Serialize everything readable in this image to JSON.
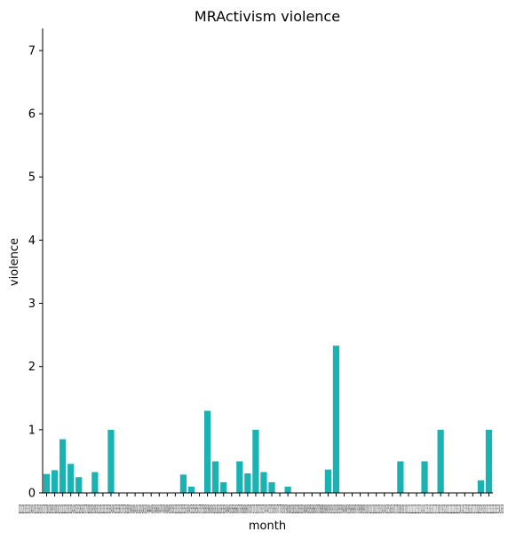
{
  "chart_data": {
    "type": "bar",
    "title": "MRActivism violence",
    "xlabel": "month",
    "ylabel": "violence",
    "ylim": [
      0,
      7.35
    ],
    "yticks": [
      0,
      1,
      2,
      3,
      4,
      5,
      6,
      7
    ],
    "grid": false,
    "bar_color": "#1ab3b3",
    "x_tick_labels_text": "201201201301301301401401501501601601701701801801901902002002102102202202302302402402502502602602702702802802903003003103103203203303303403403503503603703703803803904004004104104204204304304404404504504604604704704804804905005005105105205205305305405405505505605605705705805805906006006106106206206306306406406506506606606706706806806907007007107107207207307307407407507507607607707707807807908008008108108208208308308408408508508608608708708808808909009009109109209209309309409409509509609609709709809809910010010110110210210310310410410510510610610710710810810911011011111111211211311311411411511511611611711711811811912012012112112212212312312412412512512612612712712812812913013013113113213213313313413435",
    "categories": [
      "1",
      "2",
      "3",
      "4",
      "5",
      "6",
      "7",
      "8",
      "9",
      "10",
      "11",
      "12",
      "13",
      "14",
      "15",
      "16",
      "17",
      "18",
      "19",
      "20",
      "21",
      "22",
      "23",
      "24",
      "25",
      "26",
      "27",
      "28",
      "29",
      "30",
      "31",
      "32",
      "33",
      "34",
      "35",
      "36",
      "37",
      "38",
      "39",
      "40",
      "41",
      "42",
      "43",
      "44",
      "45",
      "46",
      "47",
      "48",
      "49",
      "50",
      "51",
      "52",
      "53",
      "54",
      "55",
      "56"
    ],
    "values": [
      0.3,
      0.36,
      0.85,
      0.46,
      0.25,
      0,
      0.33,
      0,
      1.0,
      0,
      0,
      0,
      0,
      0,
      0,
      0,
      0,
      0.29,
      0.1,
      0,
      1.3,
      0.5,
      0.17,
      0,
      0.5,
      0.31,
      1.0,
      0.33,
      0.17,
      0,
      0.1,
      0,
      0,
      0,
      0,
      0.37,
      2.33,
      0,
      0,
      0,
      0,
      0,
      0,
      0,
      0.5,
      0,
      0,
      0.5,
      0,
      1.0,
      0,
      0,
      0,
      0,
      0.2,
      1.0
    ]
  }
}
